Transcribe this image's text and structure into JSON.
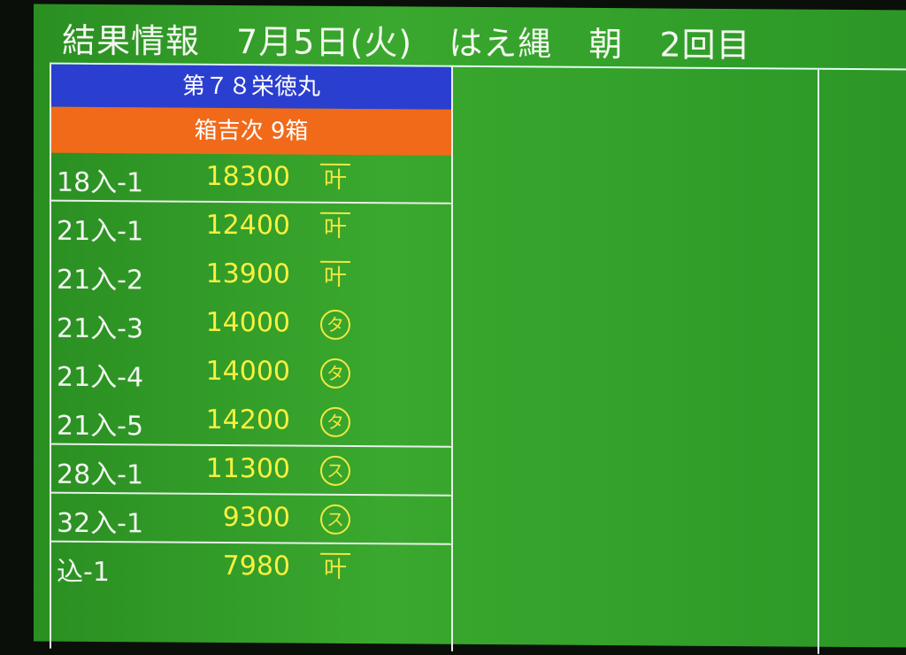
{
  "header": {
    "title": "結果情報",
    "date": "7月5日(火)",
    "fish": "はえ縄",
    "session": "朝",
    "round": "2回目"
  },
  "ship_name": "第７８栄徳丸",
  "buyer": "箱吉次 9箱",
  "rows": [
    {
      "lot": "18入-1",
      "price": "18300",
      "mark": "叶",
      "mark_type": "sq",
      "sep": true
    },
    {
      "lot": "21入-1",
      "price": "12400",
      "mark": "叶",
      "mark_type": "sq"
    },
    {
      "lot": "21入-2",
      "price": "13900",
      "mark": "叶",
      "mark_type": "sq"
    },
    {
      "lot": "21入-3",
      "price": "14000",
      "mark": "タ",
      "mark_type": "circ"
    },
    {
      "lot": "21入-4",
      "price": "14000",
      "mark": "タ",
      "mark_type": "circ"
    },
    {
      "lot": "21入-5",
      "price": "14200",
      "mark": "タ",
      "mark_type": "circ",
      "sep": true
    },
    {
      "lot": "28入-1",
      "price": "11300",
      "mark": "ス",
      "mark_type": "circ",
      "sep": true
    },
    {
      "lot": "32入-1",
      "price": "9300",
      "mark": "ス",
      "mark_type": "circ",
      "sep": true
    },
    {
      "lot": "込-1",
      "price": "7980",
      "mark": "叶",
      "mark_type": "sq"
    }
  ],
  "colors": {
    "screen": "#3aa82e",
    "ship_bg": "#2a3fcf",
    "buyer_bg": "#f06a1a",
    "price": "#f8f040"
  }
}
